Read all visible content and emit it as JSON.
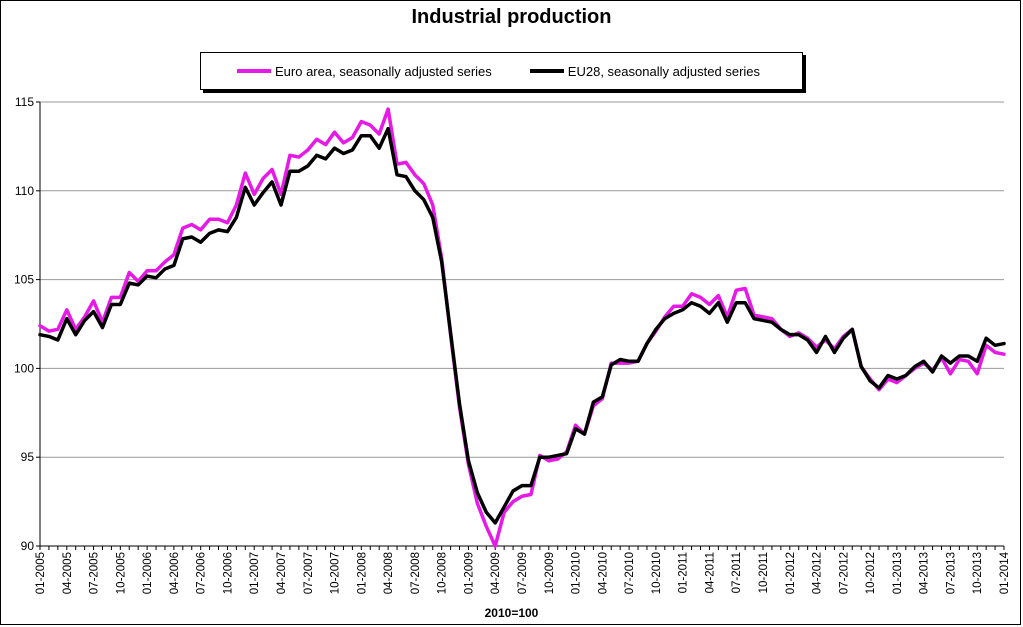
{
  "chart_data": {
    "type": "line",
    "title": "Industrial production",
    "xlabel": "2010=100",
    "ylabel": "",
    "ylim": [
      90,
      115
    ],
    "yticks": [
      90,
      95,
      100,
      105,
      110,
      115
    ],
    "grid": true,
    "legend_position": "top",
    "x_tick_labels": [
      "01-2005",
      "04-2005",
      "07-2005",
      "10-2005",
      "01-2006",
      "04-2006",
      "07-2006",
      "10-2006",
      "01-2007",
      "04-2007",
      "07-2007",
      "10-2007",
      "01-2008",
      "04-2008",
      "07-2008",
      "10-2008",
      "01-2009",
      "04-2009",
      "07-2009",
      "10-2009",
      "01-2010",
      "04-2010",
      "07-2010",
      "10-2010",
      "01-2011",
      "04-2011",
      "07-2011",
      "10-2011",
      "01-2012",
      "04-2012",
      "07-2012",
      "10-2012",
      "01-2013",
      "04-2013",
      "07-2013",
      "10-2013",
      "01-2014"
    ],
    "series": [
      {
        "name": "Euro area, seasonally adjusted series",
        "color": "#e619e6",
        "values": [
          102.4,
          102.1,
          102.2,
          103.3,
          102.2,
          102.9,
          103.8,
          102.6,
          104.0,
          104.0,
          105.4,
          104.9,
          105.5,
          105.5,
          106.0,
          106.4,
          107.9,
          108.1,
          107.8,
          108.4,
          108.4,
          108.2,
          109.2,
          111.0,
          109.8,
          110.7,
          111.2,
          109.8,
          112.0,
          111.9,
          112.3,
          112.9,
          112.6,
          113.3,
          112.7,
          113.0,
          113.9,
          113.7,
          113.2,
          114.6,
          111.5,
          111.6,
          110.9,
          110.4,
          109.2,
          106.2,
          101.9,
          97.8,
          94.6,
          92.4,
          91.1,
          90.0,
          91.9,
          92.5,
          92.8,
          92.9,
          95.1,
          94.8,
          94.9,
          95.3,
          96.8,
          96.3,
          97.9,
          98.3,
          100.3,
          100.3,
          100.3,
          100.4,
          101.4,
          102.1,
          102.9,
          103.5,
          103.5,
          104.2,
          104.0,
          103.6,
          104.1,
          102.9,
          104.4,
          104.5,
          103.0,
          102.9,
          102.8,
          102.2,
          101.8,
          102.0,
          101.7,
          101.2,
          101.6,
          101.1,
          101.8,
          102.2,
          100.1,
          99.4,
          98.8,
          99.4,
          99.2,
          99.6,
          100.0,
          100.3,
          99.9,
          100.6,
          99.7,
          100.5,
          100.4,
          99.7,
          101.3,
          100.9,
          100.8
        ]
      },
      {
        "name": "EU28, seasonally adjusted series",
        "color": "#000000",
        "values": [
          101.9,
          101.8,
          101.6,
          102.8,
          101.9,
          102.7,
          103.2,
          102.3,
          103.6,
          103.6,
          104.8,
          104.7,
          105.2,
          105.1,
          105.6,
          105.8,
          107.3,
          107.4,
          107.1,
          107.6,
          107.8,
          107.7,
          108.5,
          110.2,
          109.2,
          109.9,
          110.5,
          109.2,
          111.1,
          111.1,
          111.4,
          112.0,
          111.8,
          112.4,
          112.1,
          112.3,
          113.1,
          113.1,
          112.4,
          113.5,
          110.9,
          110.8,
          110.0,
          109.5,
          108.5,
          106.0,
          102.0,
          98.0,
          94.8,
          93.0,
          91.9,
          91.3,
          92.2,
          93.1,
          93.4,
          93.4,
          95.0,
          95.0,
          95.1,
          95.2,
          96.6,
          96.3,
          98.1,
          98.4,
          100.2,
          100.5,
          100.4,
          100.4,
          101.4,
          102.2,
          102.8,
          103.1,
          103.3,
          103.7,
          103.5,
          103.1,
          103.7,
          102.6,
          103.7,
          103.7,
          102.8,
          102.7,
          102.6,
          102.2,
          101.9,
          101.9,
          101.6,
          100.9,
          101.8,
          100.9,
          101.7,
          102.2,
          100.1,
          99.3,
          98.9,
          99.6,
          99.4,
          99.6,
          100.1,
          100.4,
          99.8,
          100.7,
          100.3,
          100.7,
          100.7,
          100.4,
          101.7,
          101.3,
          101.4
        ]
      }
    ]
  }
}
